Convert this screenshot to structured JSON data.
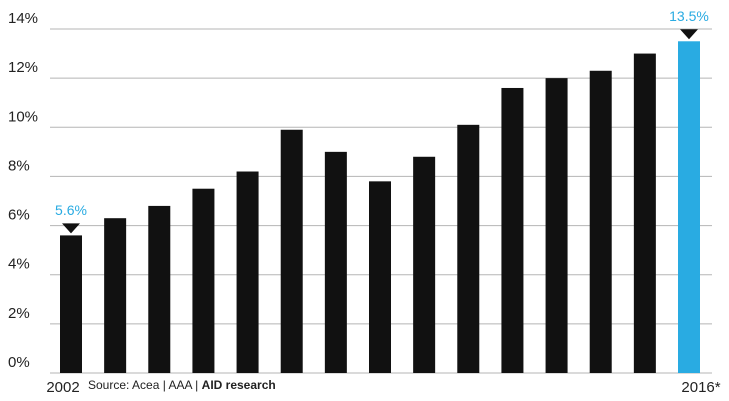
{
  "chart_data": {
    "type": "bar",
    "categories": [
      "2002",
      null,
      null,
      null,
      null,
      null,
      null,
      null,
      null,
      null,
      null,
      null,
      null,
      null,
      "2016*"
    ],
    "values": [
      5.6,
      6.3,
      6.8,
      7.5,
      8.2,
      9.9,
      9.0,
      7.8,
      8.8,
      10.1,
      11.6,
      12.0,
      12.3,
      13.0,
      13.5
    ],
    "value_labels": [
      "5.6%",
      null,
      null,
      null,
      null,
      null,
      null,
      null,
      null,
      null,
      null,
      null,
      null,
      null,
      "13.5%"
    ],
    "colors": [
      "#111111",
      "#111111",
      "#111111",
      "#111111",
      "#111111",
      "#111111",
      "#111111",
      "#111111",
      "#111111",
      "#111111",
      "#111111",
      "#111111",
      "#111111",
      "#111111",
      "#29abe2"
    ],
    "ylim": [
      0,
      14
    ],
    "yticks": [
      {
        "value": 0,
        "label": "0%"
      },
      {
        "value": 2,
        "label": "2%"
      },
      {
        "value": 4,
        "label": "4%"
      },
      {
        "value": 6,
        "label": "6%"
      },
      {
        "value": 8,
        "label": "8%"
      },
      {
        "value": 10,
        "label": "10%"
      },
      {
        "value": 12,
        "label": "12%"
      },
      {
        "value": 14,
        "label": "14%"
      }
    ],
    "grid": true,
    "source": "Source: Acea | AAA |",
    "source_highlight": "AID research"
  }
}
